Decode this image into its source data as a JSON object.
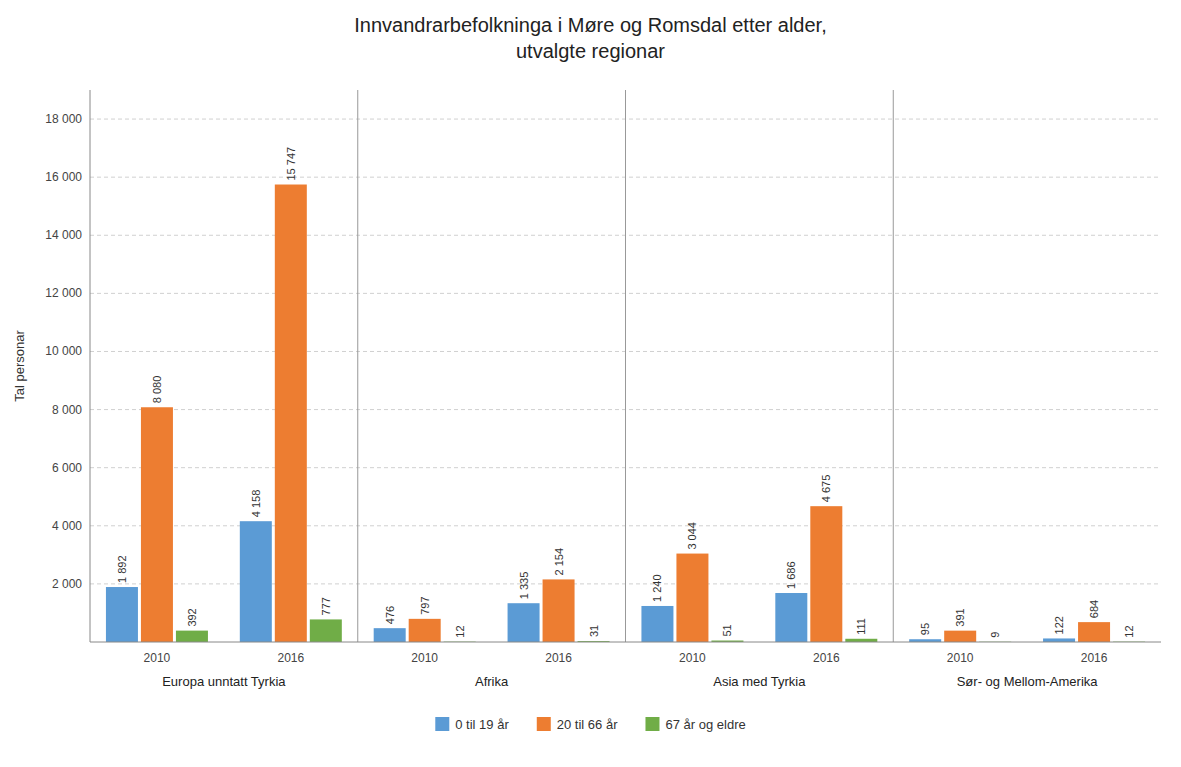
{
  "chart_data": {
    "type": "bar",
    "title": "Innvandrarbefolkninga i Møre og Romsdal etter alder,\nutvalgte regionar",
    "y_label": "Tal personar",
    "groups": [
      "Europa unntatt Tyrkia",
      "Afrika",
      "Asia med Tyrkia",
      "Sør- og Mellom-Amerika"
    ],
    "categories": [
      "2010",
      "2016",
      "2010",
      "2016",
      "2010",
      "2016",
      "2010",
      "2016"
    ],
    "series": [
      {
        "name": "0 til 19 år",
        "color": "#5b9bd5",
        "values": [
          1892,
          4158,
          476,
          1335,
          1240,
          1686,
          95,
          122
        ],
        "value_labels": [
          "1 892",
          "4 158",
          "476",
          "1 335",
          "1 240",
          "1 686",
          "95",
          "122"
        ]
      },
      {
        "name": "20 til 66 år",
        "color": "#ed7d31",
        "values": [
          8080,
          15747,
          797,
          2154,
          3044,
          4675,
          391,
          684
        ],
        "value_labels": [
          "8 080",
          "15 747",
          "797",
          "2 154",
          "3 044",
          "4 675",
          "391",
          "684"
        ]
      },
      {
        "name": "67 år og eldre",
        "color": "#70ad47",
        "values": [
          392,
          777,
          12,
          31,
          51,
          111,
          9,
          12
        ],
        "value_labels": [
          "392",
          "777",
          "12",
          "31",
          "51",
          "111",
          "9",
          "12"
        ]
      }
    ],
    "ylim": [
      0,
      19000
    ],
    "yticks": [
      {
        "value": 2000,
        "label": "2 000"
      },
      {
        "value": 4000,
        "label": "4 000"
      },
      {
        "value": 6000,
        "label": "6 000"
      },
      {
        "value": 8000,
        "label": "8 000"
      },
      {
        "value": 10000,
        "label": "10 000"
      },
      {
        "value": 12000,
        "label": "12 000"
      },
      {
        "value": 14000,
        "label": "14 000"
      },
      {
        "value": 16000,
        "label": "16 000"
      },
      {
        "value": 18000,
        "label": "18 000"
      }
    ],
    "grid": true,
    "data_labels": true,
    "legend": "bottom"
  }
}
